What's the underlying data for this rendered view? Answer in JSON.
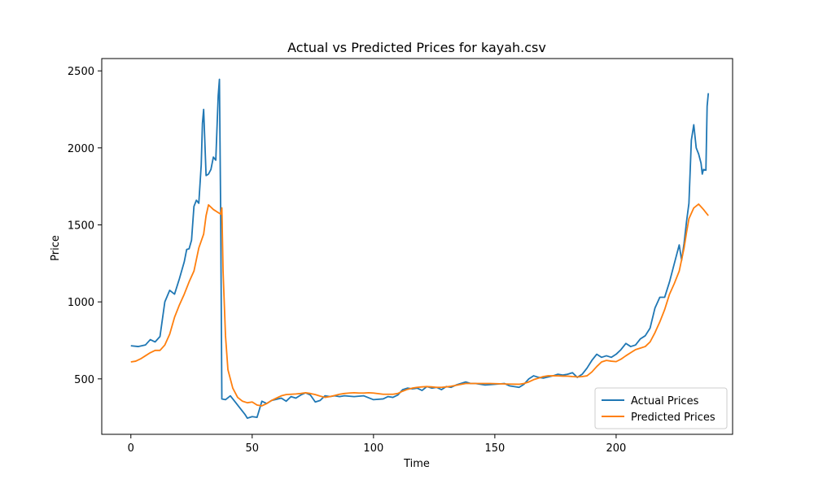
{
  "chart_data": {
    "type": "line",
    "title": "Actual vs Predicted Prices for kayah.csv",
    "xlabel": "Time",
    "ylabel": "Price",
    "xlim": [
      -12,
      248
    ],
    "ylim": [
      140,
      2580
    ],
    "xticks": [
      0,
      50,
      100,
      150,
      200
    ],
    "yticks": [
      500,
      1000,
      1500,
      2000,
      2500
    ],
    "grid": false,
    "legend_position": "lower-right",
    "series": [
      {
        "name": "Actual Prices",
        "color": "#1f77b4",
        "points": [
          [
            0,
            715
          ],
          [
            3,
            710
          ],
          [
            6,
            720
          ],
          [
            8,
            755
          ],
          [
            10,
            740
          ],
          [
            12,
            775
          ],
          [
            14,
            1000
          ],
          [
            16,
            1075
          ],
          [
            18,
            1050
          ],
          [
            20,
            1150
          ],
          [
            22,
            1260
          ],
          [
            23,
            1340
          ],
          [
            24,
            1345
          ],
          [
            25,
            1400
          ],
          [
            26,
            1620
          ],
          [
            27,
            1660
          ],
          [
            28,
            1640
          ],
          [
            29,
            1890
          ],
          [
            29.5,
            2160
          ],
          [
            30,
            2250
          ],
          [
            31,
            1820
          ],
          [
            32,
            1830
          ],
          [
            33,
            1860
          ],
          [
            34,
            1940
          ],
          [
            35,
            1920
          ],
          [
            36,
            2340
          ],
          [
            36.5,
            2445
          ],
          [
            37,
            1600
          ],
          [
            37.5,
            370
          ],
          [
            39,
            365
          ],
          [
            41,
            390
          ],
          [
            43,
            350
          ],
          [
            45,
            310
          ],
          [
            47,
            270
          ],
          [
            48,
            245
          ],
          [
            50,
            255
          ],
          [
            52,
            250
          ],
          [
            54,
            355
          ],
          [
            56,
            340
          ],
          [
            58,
            360
          ],
          [
            62,
            375
          ],
          [
            64,
            355
          ],
          [
            66,
            385
          ],
          [
            68,
            375
          ],
          [
            70,
            395
          ],
          [
            72,
            410
          ],
          [
            74,
            395
          ],
          [
            76,
            350
          ],
          [
            78,
            360
          ],
          [
            80,
            390
          ],
          [
            82,
            385
          ],
          [
            84,
            390
          ],
          [
            86,
            385
          ],
          [
            88,
            390
          ],
          [
            92,
            385
          ],
          [
            96,
            390
          ],
          [
            100,
            365
          ],
          [
            104,
            370
          ],
          [
            106,
            385
          ],
          [
            108,
            380
          ],
          [
            110,
            395
          ],
          [
            112,
            430
          ],
          [
            114,
            440
          ],
          [
            116,
            435
          ],
          [
            118,
            440
          ],
          [
            120,
            425
          ],
          [
            122,
            450
          ],
          [
            124,
            440
          ],
          [
            126,
            445
          ],
          [
            128,
            430
          ],
          [
            130,
            450
          ],
          [
            132,
            445
          ],
          [
            134,
            460
          ],
          [
            136,
            470
          ],
          [
            138,
            480
          ],
          [
            140,
            470
          ],
          [
            142,
            470
          ],
          [
            146,
            460
          ],
          [
            150,
            465
          ],
          [
            154,
            470
          ],
          [
            156,
            455
          ],
          [
            160,
            445
          ],
          [
            162,
            465
          ],
          [
            164,
            500
          ],
          [
            166,
            520
          ],
          [
            168,
            510
          ],
          [
            170,
            505
          ],
          [
            174,
            520
          ],
          [
            176,
            530
          ],
          [
            178,
            525
          ],
          [
            180,
            530
          ],
          [
            182,
            540
          ],
          [
            184,
            510
          ],
          [
            186,
            530
          ],
          [
            188,
            570
          ],
          [
            190,
            620
          ],
          [
            192,
            660
          ],
          [
            194,
            640
          ],
          [
            196,
            650
          ],
          [
            198,
            640
          ],
          [
            200,
            660
          ],
          [
            202,
            690
          ],
          [
            204,
            730
          ],
          [
            206,
            710
          ],
          [
            208,
            720
          ],
          [
            210,
            760
          ],
          [
            212,
            780
          ],
          [
            214,
            830
          ],
          [
            216,
            960
          ],
          [
            218,
            1030
          ],
          [
            220,
            1030
          ],
          [
            222,
            1130
          ],
          [
            224,
            1250
          ],
          [
            226,
            1370
          ],
          [
            227,
            1270
          ],
          [
            228,
            1380
          ],
          [
            229,
            1520
          ],
          [
            230,
            1640
          ],
          [
            231,
            2050
          ],
          [
            232,
            2150
          ],
          [
            233,
            2000
          ],
          [
            234,
            1960
          ],
          [
            235,
            1900
          ],
          [
            235.5,
            1830
          ],
          [
            236,
            1860
          ],
          [
            237,
            1855
          ],
          [
            237.5,
            2270
          ],
          [
            238,
            2355
          ]
        ]
      },
      {
        "name": "Predicted Prices",
        "color": "#ff7f0e",
        "points": [
          [
            0,
            610
          ],
          [
            2,
            615
          ],
          [
            4,
            630
          ],
          [
            6,
            650
          ],
          [
            8,
            670
          ],
          [
            10,
            685
          ],
          [
            12,
            685
          ],
          [
            14,
            720
          ],
          [
            16,
            790
          ],
          [
            18,
            900
          ],
          [
            20,
            980
          ],
          [
            22,
            1050
          ],
          [
            24,
            1130
          ],
          [
            26,
            1200
          ],
          [
            28,
            1350
          ],
          [
            30,
            1440
          ],
          [
            31,
            1560
          ],
          [
            32,
            1630
          ],
          [
            34,
            1600
          ],
          [
            36,
            1580
          ],
          [
            37,
            1570
          ],
          [
            37.5,
            1610
          ],
          [
            38,
            1200
          ],
          [
            39,
            780
          ],
          [
            40,
            560
          ],
          [
            42,
            440
          ],
          [
            44,
            380
          ],
          [
            46,
            355
          ],
          [
            48,
            345
          ],
          [
            50,
            350
          ],
          [
            52,
            330
          ],
          [
            54,
            325
          ],
          [
            56,
            340
          ],
          [
            58,
            360
          ],
          [
            60,
            375
          ],
          [
            62,
            390
          ],
          [
            64,
            398
          ],
          [
            66,
            400
          ],
          [
            68,
            402
          ],
          [
            70,
            405
          ],
          [
            72,
            410
          ],
          [
            74,
            405
          ],
          [
            76,
            398
          ],
          [
            78,
            388
          ],
          [
            80,
            380
          ],
          [
            82,
            385
          ],
          [
            84,
            392
          ],
          [
            86,
            400
          ],
          [
            88,
            405
          ],
          [
            90,
            408
          ],
          [
            92,
            410
          ],
          [
            94,
            408
          ],
          [
            96,
            408
          ],
          [
            98,
            410
          ],
          [
            100,
            408
          ],
          [
            104,
            400
          ],
          [
            108,
            400
          ],
          [
            110,
            405
          ],
          [
            112,
            420
          ],
          [
            114,
            432
          ],
          [
            116,
            440
          ],
          [
            118,
            445
          ],
          [
            120,
            448
          ],
          [
            122,
            450
          ],
          [
            124,
            448
          ],
          [
            126,
            445
          ],
          [
            128,
            445
          ],
          [
            130,
            448
          ],
          [
            132,
            452
          ],
          [
            134,
            458
          ],
          [
            136,
            464
          ],
          [
            138,
            470
          ],
          [
            140,
            470
          ],
          [
            144,
            470
          ],
          [
            148,
            470
          ],
          [
            152,
            468
          ],
          [
            156,
            466
          ],
          [
            160,
            465
          ],
          [
            162,
            470
          ],
          [
            164,
            480
          ],
          [
            166,
            495
          ],
          [
            168,
            505
          ],
          [
            170,
            515
          ],
          [
            172,
            520
          ],
          [
            174,
            520
          ],
          [
            176,
            520
          ],
          [
            178,
            518
          ],
          [
            180,
            518
          ],
          [
            182,
            515
          ],
          [
            184,
            513
          ],
          [
            186,
            515
          ],
          [
            188,
            520
          ],
          [
            190,
            545
          ],
          [
            192,
            580
          ],
          [
            194,
            610
          ],
          [
            196,
            620
          ],
          [
            198,
            615
          ],
          [
            200,
            612
          ],
          [
            202,
            628
          ],
          [
            204,
            650
          ],
          [
            206,
            670
          ],
          [
            208,
            690
          ],
          [
            210,
            700
          ],
          [
            212,
            710
          ],
          [
            214,
            740
          ],
          [
            216,
            800
          ],
          [
            218,
            870
          ],
          [
            220,
            950
          ],
          [
            222,
            1050
          ],
          [
            224,
            1120
          ],
          [
            226,
            1200
          ],
          [
            228,
            1350
          ],
          [
            229,
            1450
          ],
          [
            230,
            1540
          ],
          [
            232,
            1610
          ],
          [
            234,
            1635
          ],
          [
            236,
            1600
          ],
          [
            238,
            1560
          ]
        ]
      }
    ]
  }
}
